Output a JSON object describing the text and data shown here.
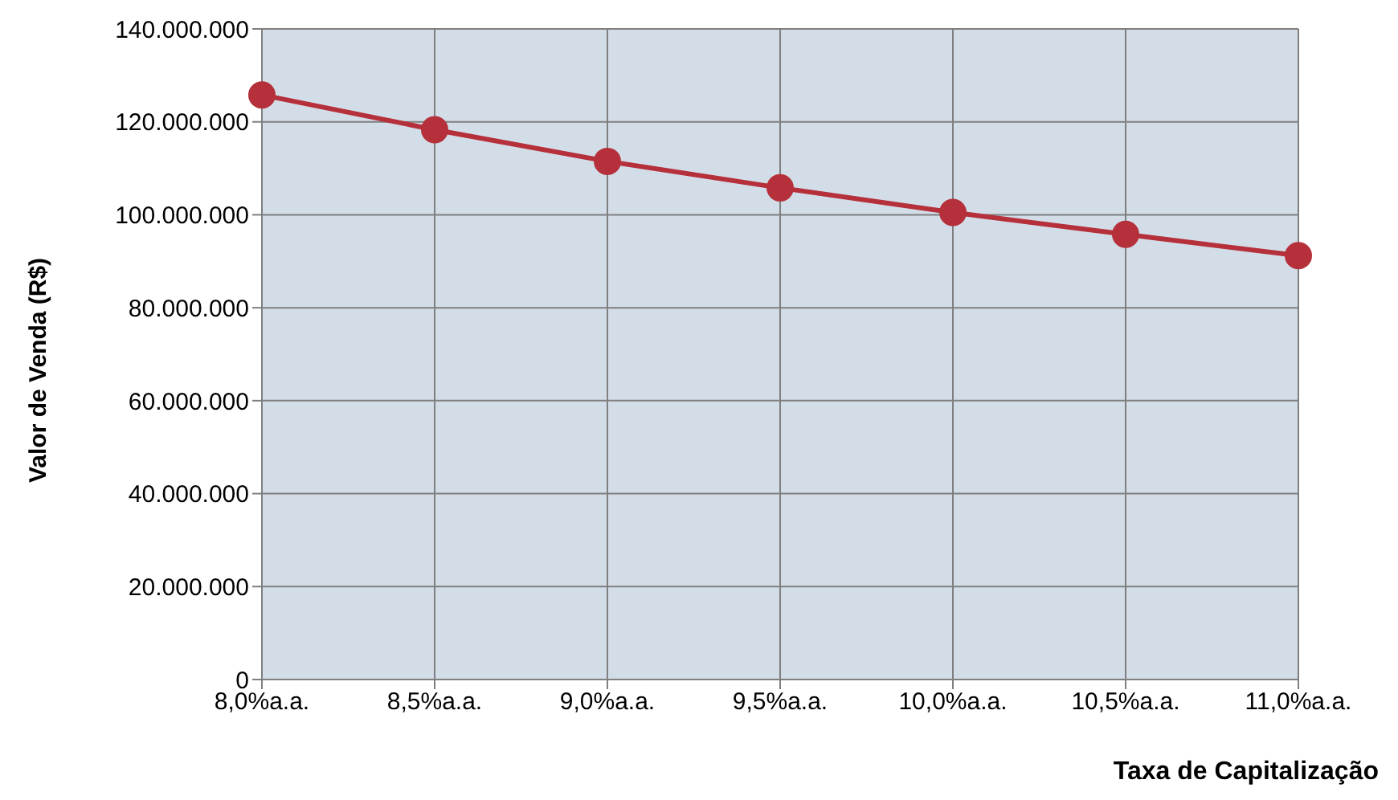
{
  "chart_data": {
    "type": "line",
    "xlabel": "Taxa de Capitalização",
    "ylabel": "Valor de Venda (R$)",
    "categories": [
      "8,0%a.a.",
      "8,5%a.a.",
      "9,0%a.a.",
      "9,5%a.a.",
      "10,0%a.a.",
      "10,5%a.a.",
      "11,0%a.a."
    ],
    "series": [
      {
        "color": "#b5303a",
        "values": [
          125800000,
          118300000,
          111500000,
          105800000,
          100500000,
          95800000,
          91200000
        ]
      }
    ],
    "ylim": [
      0,
      140000000
    ],
    "yticks": [
      0,
      {
        "value": 20000000,
        "label": "20.000.000"
      },
      {
        "value": 40000000,
        "label": "40.000.000"
      },
      {
        "value": 60000000,
        "label": "60.000.000"
      },
      {
        "value": 80000000,
        "label": "80.000.000"
      },
      {
        "value": 100000000,
        "label": "100.000.000"
      },
      {
        "value": 120000000,
        "label": "120.000.000"
      },
      {
        "value": 140000000,
        "label": "140.000.000"
      }
    ],
    "grid": true,
    "marker": "circle",
    "line_style": "solid",
    "legend": false
  }
}
